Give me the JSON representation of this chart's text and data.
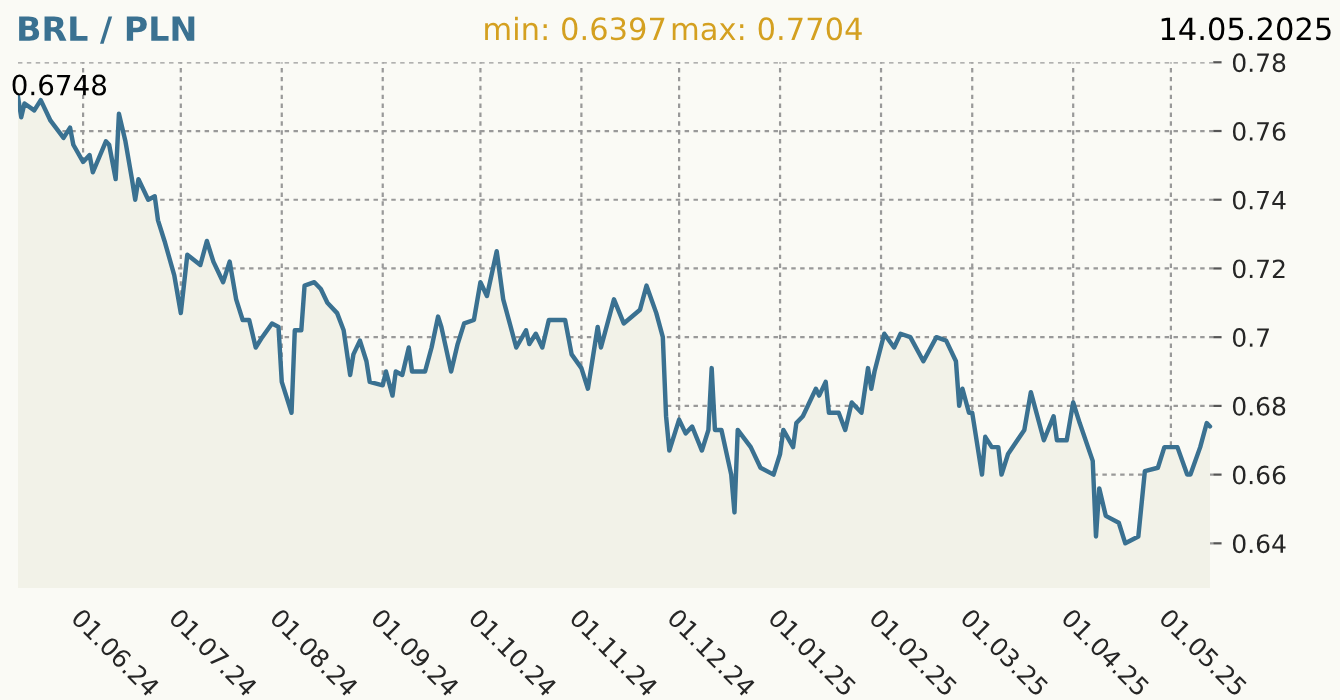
{
  "chart_data": {
    "type": "area",
    "title": "BRL / PLN",
    "annotations": [
      "min: 0.6397",
      "max: 0.7704",
      "14.05.2025",
      "0.6748"
    ],
    "series": [
      {
        "color": "#3a7191",
        "x": [
          "2024-05-12",
          "2024-05-13",
          "2024-05-14",
          "2024-05-17",
          "2024-05-19",
          "2024-05-22",
          "2024-05-26",
          "2024-05-28",
          "2024-05-29",
          "2024-06-01",
          "2024-06-03",
          "2024-06-04",
          "2024-06-08",
          "2024-06-09",
          "2024-06-11",
          "2024-06-12",
          "2024-06-14",
          "2024-06-16",
          "2024-06-17",
          "2024-06-18",
          "2024-06-21",
          "2024-06-23",
          "2024-06-24",
          "2024-06-26",
          "2024-06-29",
          "2024-07-01",
          "2024-07-03",
          "2024-07-07",
          "2024-07-09",
          "2024-07-11",
          "2024-07-14",
          "2024-07-16",
          "2024-07-18",
          "2024-07-20",
          "2024-07-22",
          "2024-07-24",
          "2024-07-26",
          "2024-07-29",
          "2024-07-31",
          "2024-08-01",
          "2024-08-04",
          "2024-08-05",
          "2024-08-07",
          "2024-08-08",
          "2024-08-11",
          "2024-08-13",
          "2024-08-15",
          "2024-08-18",
          "2024-08-20",
          "2024-08-22",
          "2024-08-23",
          "2024-08-25",
          "2024-08-27",
          "2024-08-28",
          "2024-09-01",
          "2024-09-02",
          "2024-09-04",
          "2024-09-05",
          "2024-09-07",
          "2024-09-09",
          "2024-09-10",
          "2024-09-14",
          "2024-09-16",
          "2024-09-18",
          "2024-09-19",
          "2024-09-22",
          "2024-09-24",
          "2024-09-26",
          "2024-09-29",
          "2024-10-01",
          "2024-10-03",
          "2024-10-06",
          "2024-10-08",
          "2024-10-10",
          "2024-10-12",
          "2024-10-15",
          "2024-10-16",
          "2024-10-18",
          "2024-10-20",
          "2024-10-22",
          "2024-10-27",
          "2024-10-29",
          "2024-11-01",
          "2024-11-03",
          "2024-11-06",
          "2024-11-07",
          "2024-11-11",
          "2024-11-14",
          "2024-11-19",
          "2024-11-21",
          "2024-11-24",
          "2024-11-26",
          "2024-11-27",
          "2024-11-28",
          "2024-12-01",
          "2024-12-03",
          "2024-12-05",
          "2024-12-08",
          "2024-12-10",
          "2024-12-11",
          "2024-12-12",
          "2024-12-14",
          "2024-12-17",
          "2024-12-18",
          "2024-12-19",
          "2024-12-23",
          "2024-12-26",
          "2024-12-30",
          "2025-01-01",
          "2025-01-02",
          "2025-01-05",
          "2025-01-06",
          "2025-01-08",
          "2025-01-12",
          "2025-01-13",
          "2025-01-15",
          "2025-01-16",
          "2025-01-19",
          "2025-01-21",
          "2025-01-23",
          "2025-01-26",
          "2025-01-28",
          "2025-01-29",
          "2025-01-30",
          "2025-02-02",
          "2025-02-05",
          "2025-02-07",
          "2025-02-10",
          "2025-02-14",
          "2025-02-18",
          "2025-02-21",
          "2025-02-24",
          "2025-02-25",
          "2025-02-26",
          "2025-02-28",
          "2025-03-01",
          "2025-03-04",
          "2025-03-05",
          "2025-03-07",
          "2025-03-09",
          "2025-03-10",
          "2025-03-12",
          "2025-03-17",
          "2025-03-19",
          "2025-03-21",
          "2025-03-23",
          "2025-03-26",
          "2025-03-27",
          "2025-03-30",
          "2025-04-01",
          "2025-04-03",
          "2025-04-07",
          "2025-04-08",
          "2025-04-09",
          "2025-04-11",
          "2025-04-15",
          "2025-04-17",
          "2025-04-21",
          "2025-04-23",
          "2025-04-27",
          "2025-04-29",
          "2025-05-01",
          "2025-05-03",
          "2025-05-06",
          "2025-05-07",
          "2025-05-10",
          "2025-05-12",
          "2025-05-13"
        ],
        "values": [
          0.77,
          0.764,
          0.768,
          0.766,
          0.769,
          0.763,
          0.758,
          0.761,
          0.756,
          0.751,
          0.753,
          0.748,
          0.757,
          0.756,
          0.746,
          0.765,
          0.757,
          0.746,
          0.74,
          0.746,
          0.74,
          0.741,
          0.734,
          0.728,
          0.718,
          0.707,
          0.724,
          0.721,
          0.728,
          0.722,
          0.716,
          0.722,
          0.711,
          0.705,
          0.705,
          0.697,
          0.7,
          0.704,
          0.703,
          0.687,
          0.678,
          0.702,
          0.702,
          0.715,
          0.716,
          0.714,
          0.71,
          0.707,
          0.702,
          0.689,
          0.695,
          0.699,
          0.693,
          0.687,
          0.686,
          0.69,
          0.683,
          0.69,
          0.689,
          0.697,
          0.69,
          0.69,
          0.697,
          0.706,
          0.703,
          0.69,
          0.698,
          0.704,
          0.705,
          0.716,
          0.712,
          0.725,
          0.711,
          0.704,
          0.697,
          0.702,
          0.698,
          0.701,
          0.697,
          0.705,
          0.705,
          0.695,
          0.691,
          0.685,
          0.703,
          0.697,
          0.711,
          0.704,
          0.708,
          0.715,
          0.707,
          0.7,
          0.677,
          0.667,
          0.676,
          0.672,
          0.674,
          0.667,
          0.673,
          0.691,
          0.673,
          0.673,
          0.66,
          0.649,
          0.673,
          0.668,
          0.662,
          0.66,
          0.666,
          0.673,
          0.668,
          0.675,
          0.677,
          0.685,
          0.683,
          0.687,
          0.678,
          0.678,
          0.673,
          0.681,
          0.678,
          0.691,
          0.685,
          0.69,
          0.701,
          0.697,
          0.701,
          0.7,
          0.693,
          0.7,
          0.699,
          0.693,
          0.68,
          0.685,
          0.678,
          0.678,
          0.66,
          0.671,
          0.668,
          0.668,
          0.66,
          0.666,
          0.673,
          0.684,
          0.677,
          0.67,
          0.677,
          0.67,
          0.67,
          0.681,
          0.675,
          0.664,
          0.642,
          0.656,
          0.648,
          0.646,
          0.64,
          0.642,
          0.661,
          0.662,
          0.668,
          0.668,
          0.668,
          0.66,
          0.66,
          0.668,
          0.675,
          0.674
        ]
      }
    ],
    "xlim": [
      "2024-05-12",
      "2025-05-14"
    ],
    "xticks": [
      {
        "value": "2024-06-01",
        "label": "01.06.24"
      },
      {
        "value": "2024-07-01",
        "label": "01.07.24"
      },
      {
        "value": "2024-08-01",
        "label": "01.08.24"
      },
      {
        "value": "2024-09-01",
        "label": "01.09.24"
      },
      {
        "value": "2024-10-01",
        "label": "01.10.24"
      },
      {
        "value": "2024-11-01",
        "label": "01.11.24"
      },
      {
        "value": "2024-12-01",
        "label": "01.12.24"
      },
      {
        "value": "2025-01-01",
        "label": "01.01.25"
      },
      {
        "value": "2025-02-01",
        "label": "01.02.25"
      },
      {
        "value": "2025-03-01",
        "label": "01.03.25"
      },
      {
        "value": "2025-04-01",
        "label": "01.04.25"
      },
      {
        "value": "2025-05-01",
        "label": "01.05.25"
      }
    ],
    "ylim": [
      0.627,
      0.78
    ],
    "yticks": [
      0.64,
      0.66,
      0.68,
      {
        "value": 0.7,
        "label": "0.7"
      },
      0.72,
      0.74,
      0.76,
      0.78
    ],
    "grid": true
  }
}
